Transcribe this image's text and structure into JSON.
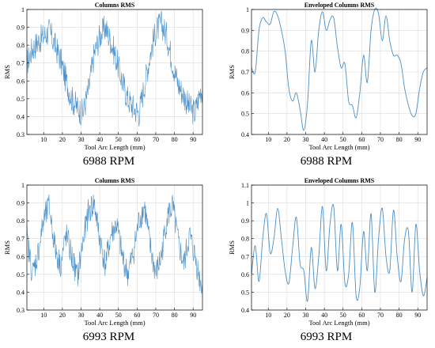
{
  "panel_captions": [
    "6988 RPM",
    "6988 RPM",
    "6993 RPM",
    "6993 RPM"
  ],
  "colors": {
    "series": "#4a8fc7",
    "grid": "#dcdcdc",
    "axis": "#000000"
  },
  "chart_data": [
    {
      "type": "line",
      "title": "Columns RMS",
      "xlabel": "Tool Arc Length (mm)",
      "ylabel": "RMS",
      "xlim": [
        1,
        95
      ],
      "ylim": [
        0.3,
        1.0
      ],
      "xticks": [
        10,
        20,
        30,
        40,
        50,
        60,
        70,
        80,
        90
      ],
      "yticks": [
        0.3,
        0.4,
        0.5,
        0.6,
        0.7,
        0.8,
        0.9,
        1
      ],
      "ytick_labels": [
        "0.3",
        "0.4",
        "0.5",
        "0.6",
        "0.7",
        "0.8",
        "0.9",
        "1"
      ],
      "grid": true,
      "noisy": true,
      "series": [
        {
          "x": [
            1,
            4,
            7,
            10,
            13,
            16,
            19,
            22,
            25,
            28,
            31,
            34,
            37,
            40,
            43,
            46,
            49,
            52,
            55,
            58,
            61,
            64,
            67,
            70,
            73,
            76,
            79,
            82,
            85,
            88,
            91,
            94
          ],
          "values": [
            0.7,
            0.78,
            0.82,
            0.85,
            0.88,
            0.8,
            0.72,
            0.6,
            0.5,
            0.45,
            0.42,
            0.55,
            0.75,
            0.85,
            0.9,
            0.82,
            0.72,
            0.6,
            0.5,
            0.45,
            0.42,
            0.58,
            0.75,
            0.88,
            0.92,
            0.85,
            0.7,
            0.58,
            0.52,
            0.45,
            0.42,
            0.55
          ]
        }
      ]
    },
    {
      "type": "line",
      "title": "Enveloped Columns RMS",
      "xlabel": "Tool Arc Length (mm)",
      "ylabel": "RMS",
      "xlim": [
        1,
        95
      ],
      "ylim": [
        0.4,
        1.0
      ],
      "xticks": [
        10,
        20,
        30,
        40,
        50,
        60,
        70,
        80,
        90
      ],
      "yticks": [
        0.4,
        0.5,
        0.6,
        0.7,
        0.8,
        0.9,
        1
      ],
      "ytick_labels": [
        "0.4",
        "0.5",
        "0.6",
        "0.7",
        "0.8",
        "0.9",
        "1"
      ],
      "grid": true,
      "noisy": false,
      "series": [
        {
          "x": [
            1,
            3,
            5,
            7,
            9,
            11,
            13,
            15,
            17,
            19,
            21,
            23,
            25,
            27,
            29,
            31,
            33,
            35,
            37,
            39,
            41,
            43,
            45,
            47,
            49,
            51,
            53,
            55,
            57,
            59,
            61,
            63,
            65,
            67,
            69,
            71,
            73,
            75,
            77,
            79,
            81,
            83,
            85,
            87,
            89,
            91,
            93,
            95
          ],
          "values": [
            0.72,
            0.7,
            0.9,
            0.96,
            0.94,
            0.93,
            0.99,
            0.97,
            0.9,
            0.8,
            0.62,
            0.56,
            0.6,
            0.52,
            0.42,
            0.55,
            0.85,
            0.7,
            0.9,
            0.99,
            0.9,
            0.95,
            0.96,
            0.82,
            0.72,
            0.74,
            0.56,
            0.54,
            0.48,
            0.6,
            0.78,
            0.65,
            0.9,
            1.0,
            0.98,
            0.85,
            0.97,
            0.85,
            0.78,
            0.78,
            0.74,
            0.62,
            0.54,
            0.49,
            0.5,
            0.62,
            0.7,
            0.72
          ]
        }
      ]
    },
    {
      "type": "line",
      "title": "Columns RMS",
      "xlabel": "Tool Arc Length (mm)",
      "ylabel": "RMS",
      "xlim": [
        1,
        95
      ],
      "ylim": [
        0.3,
        1.0
      ],
      "xticks": [
        10,
        20,
        30,
        40,
        50,
        60,
        70,
        80,
        90
      ],
      "yticks": [
        0.3,
        0.4,
        0.5,
        0.6,
        0.7,
        0.8,
        0.9,
        1
      ],
      "ytick_labels": [
        "0.3",
        "0.4",
        "0.5",
        "0.6",
        "0.7",
        "0.8",
        "0.9",
        "1"
      ],
      "grid": true,
      "noisy": true,
      "series": [
        {
          "x": [
            1,
            4,
            7,
            10,
            13,
            16,
            19,
            22,
            25,
            28,
            31,
            34,
            37,
            40,
            43,
            46,
            49,
            52,
            55,
            58,
            61,
            64,
            67,
            70,
            73,
            76,
            79,
            82,
            85,
            88,
            91,
            94
          ],
          "values": [
            0.7,
            0.5,
            0.62,
            0.8,
            0.88,
            0.65,
            0.55,
            0.72,
            0.6,
            0.48,
            0.68,
            0.85,
            0.9,
            0.7,
            0.55,
            0.72,
            0.78,
            0.6,
            0.5,
            0.62,
            0.8,
            0.88,
            0.65,
            0.5,
            0.6,
            0.82,
            0.88,
            0.68,
            0.55,
            0.72,
            0.6,
            0.45
          ]
        }
      ]
    },
    {
      "type": "line",
      "title": "Enveloped Columns RMS",
      "xlabel": "Tool Arc Length (mm)",
      "ylabel": "RMS",
      "xlim": [
        1,
        95
      ],
      "ylim": [
        0.4,
        1.1
      ],
      "xticks": [
        10,
        20,
        30,
        40,
        50,
        60,
        70,
        80,
        90
      ],
      "yticks": [
        0.4,
        0.5,
        0.6,
        0.7,
        0.8,
        0.9,
        1,
        1.1
      ],
      "ytick_labels": [
        "0.4",
        "0.5",
        "0.6",
        "0.7",
        "0.8",
        "0.9",
        "1",
        "1.1"
      ],
      "grid": true,
      "noisy": false,
      "series": [
        {
          "x": [
            1,
            3,
            5,
            7,
            9,
            11,
            13,
            15,
            17,
            19,
            21,
            23,
            25,
            27,
            29,
            31,
            33,
            35,
            37,
            39,
            41,
            43,
            45,
            47,
            49,
            51,
            53,
            55,
            57,
            59,
            61,
            63,
            65,
            67,
            69,
            71,
            73,
            75,
            77,
            79,
            81,
            83,
            85,
            87,
            89,
            91,
            93,
            95
          ],
          "values": [
            0.6,
            0.76,
            0.56,
            0.8,
            0.94,
            0.72,
            0.8,
            0.97,
            0.8,
            0.62,
            0.55,
            0.75,
            0.92,
            0.66,
            0.62,
            0.45,
            0.75,
            0.52,
            0.7,
            0.98,
            0.62,
            0.88,
            0.98,
            0.62,
            0.88,
            0.55,
            0.6,
            0.89,
            0.48,
            0.53,
            0.84,
            0.62,
            0.94,
            0.5,
            0.8,
            0.97,
            0.7,
            0.62,
            0.96,
            0.7,
            0.56,
            0.8,
            0.84,
            0.5,
            0.88,
            0.62,
            0.48,
            0.58
          ]
        }
      ]
    }
  ]
}
